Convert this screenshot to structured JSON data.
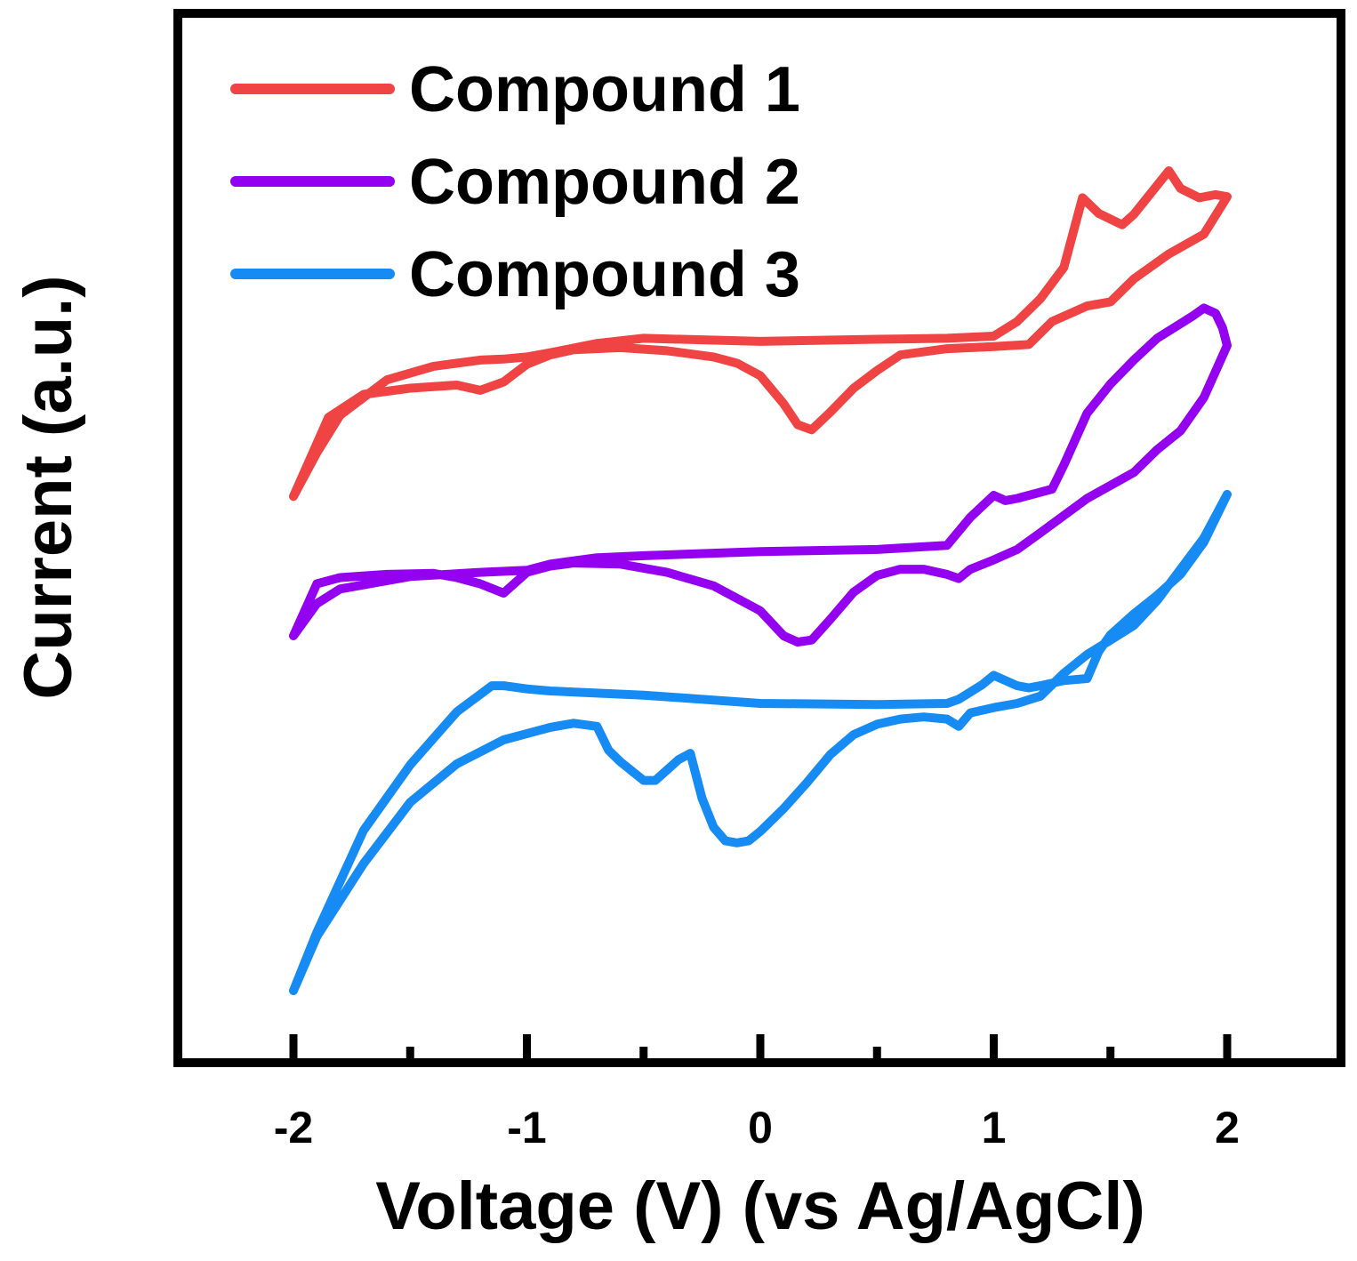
{
  "chart_data": {
    "type": "line",
    "title": "",
    "xlabel": "Voltage (V) (vs Ag/AgCl)",
    "ylabel": "Current (a.u.)",
    "xlim": [
      -2.5,
      2.5
    ],
    "ylim": [
      0,
      100
    ],
    "x_ticks": [
      -2,
      -1,
      0,
      1,
      2
    ],
    "x_tick_labels": [
      "-2",
      "-1",
      "0",
      "1",
      "2"
    ],
    "x_minor_ticks": [
      -1.5,
      -0.5,
      0.5,
      1.5
    ],
    "y_ticks_shown": false,
    "legend": {
      "position": "top-left"
    },
    "series": [
      {
        "name": "Compound 1",
        "color": "#f04343",
        "x": [
          -2.0,
          -1.85,
          -1.7,
          -1.5,
          -1.3,
          -1.2,
          -1.1,
          -1.0,
          -0.9,
          -0.8,
          -0.6,
          -0.4,
          -0.2,
          -0.1,
          0.0,
          0.1,
          0.16,
          0.22,
          0.3,
          0.4,
          0.5,
          0.6,
          0.8,
          1.0,
          1.15,
          1.25,
          1.4,
          1.5,
          1.6,
          1.75,
          1.9,
          2.0,
          1.95,
          1.88,
          1.8,
          1.75,
          1.6,
          1.55,
          1.45,
          1.38,
          1.3,
          1.2,
          1.1,
          1.0,
          0.8,
          0.5,
          0.0,
          -0.5,
          -0.7,
          -0.9,
          -1.0,
          -1.1,
          -1.2,
          -1.4,
          -1.6,
          -1.8,
          -1.9,
          -2.0
        ],
        "y": [
          54.0,
          61.6,
          63.8,
          64.4,
          64.7,
          64.2,
          65.0,
          66.7,
          67.6,
          68.1,
          68.3,
          68.0,
          67.4,
          66.8,
          65.6,
          62.9,
          60.9,
          60.4,
          62.1,
          64.4,
          66.1,
          67.6,
          68.2,
          68.4,
          68.6,
          70.8,
          72.3,
          72.7,
          74.9,
          77.3,
          79.2,
          82.8,
          83.0,
          82.7,
          83.6,
          85.3,
          81.1,
          80.1,
          81.2,
          82.7,
          76.0,
          73.0,
          70.8,
          69.4,
          69.2,
          69.1,
          68.9,
          69.2,
          68.7,
          67.8,
          67.4,
          67.2,
          67.1,
          66.5,
          65.2,
          61.8,
          58.2,
          54.0
        ]
      },
      {
        "name": "Compound 2",
        "color": "#9400f0",
        "x": [
          -2.0,
          -1.9,
          -1.8,
          -1.6,
          -1.4,
          -1.3,
          -1.2,
          -1.1,
          -1.0,
          -0.9,
          -0.8,
          -0.6,
          -0.4,
          -0.2,
          0.0,
          0.1,
          0.16,
          0.22,
          0.3,
          0.4,
          0.5,
          0.6,
          0.7,
          0.8,
          0.85,
          0.9,
          1.0,
          1.1,
          1.2,
          1.4,
          1.6,
          1.7,
          1.8,
          1.9,
          2.0,
          1.98,
          1.95,
          1.9,
          1.85,
          1.8,
          1.7,
          1.6,
          1.5,
          1.4,
          1.3,
          1.25,
          1.2,
          1.1,
          1.05,
          1.0,
          0.9,
          0.8,
          0.5,
          0.0,
          -0.5,
          -0.7,
          -0.8,
          -0.9,
          -1.0,
          -1.2,
          -1.5,
          -1.8,
          -1.9,
          -2.0
        ],
        "y": [
          40.6,
          45.6,
          46.2,
          46.5,
          46.6,
          46.2,
          45.6,
          44.7,
          46.7,
          47.3,
          47.6,
          47.5,
          46.7,
          45.4,
          43.0,
          40.6,
          40.0,
          40.2,
          42.2,
          44.8,
          46.4,
          47.0,
          47.0,
          46.5,
          46.1,
          47.0,
          47.9,
          48.9,
          50.5,
          53.8,
          56.3,
          58.5,
          60.3,
          63.5,
          68.5,
          70.2,
          71.6,
          72.1,
          71.3,
          70.6,
          69.2,
          67.1,
          64.8,
          62.0,
          57.0,
          54.7,
          54.4,
          53.8,
          53.6,
          54.1,
          52.0,
          49.3,
          48.9,
          48.7,
          48.3,
          48.1,
          47.8,
          47.5,
          46.9,
          46.7,
          46.3,
          45.1,
          43.7,
          40.6
        ]
      },
      {
        "name": "Compound 3",
        "color": "#168bf3",
        "x": [
          -2.0,
          -1.9,
          -1.7,
          -1.5,
          -1.3,
          -1.1,
          -0.9,
          -0.8,
          -0.7,
          -0.65,
          -0.6,
          -0.5,
          -0.45,
          -0.35,
          -0.3,
          -0.25,
          -0.2,
          -0.15,
          -0.1,
          -0.05,
          0.0,
          0.1,
          0.2,
          0.3,
          0.4,
          0.5,
          0.6,
          0.7,
          0.8,
          0.85,
          0.9,
          1.0,
          1.1,
          1.2,
          1.3,
          1.4,
          1.5,
          1.6,
          1.7,
          1.8,
          1.9,
          2.0,
          1.9,
          1.8,
          1.7,
          1.6,
          1.5,
          1.45,
          1.4,
          1.3,
          1.2,
          1.15,
          1.1,
          1.0,
          0.95,
          0.85,
          0.8,
          0.5,
          0.0,
          -0.5,
          -0.9,
          -1.0,
          -1.1,
          -1.15,
          -1.3,
          -1.5,
          -1.7,
          -1.9,
          -2.0
        ],
        "y": [
          6.5,
          11.7,
          18.7,
          24.6,
          28.3,
          30.6,
          31.8,
          32.2,
          31.9,
          29.6,
          28.5,
          26.7,
          26.7,
          28.7,
          29.3,
          25.0,
          22.2,
          20.9,
          20.7,
          20.9,
          21.8,
          24.0,
          26.5,
          29.2,
          31.1,
          32.1,
          32.6,
          32.8,
          32.6,
          31.9,
          33.2,
          33.7,
          34.1,
          34.8,
          37.0,
          38.8,
          40.2,
          41.6,
          44.0,
          47.0,
          50.0,
          54.2,
          49.6,
          46.5,
          44.5,
          42.7,
          40.7,
          39.1,
          36.5,
          36.3,
          35.8,
          35.6,
          35.8,
          36.8,
          35.9,
          34.5,
          34.1,
          34.0,
          34.1,
          34.9,
          35.3,
          35.5,
          35.8,
          35.8,
          33.3,
          28.2,
          21.9,
          12.1,
          6.5
        ]
      }
    ]
  }
}
